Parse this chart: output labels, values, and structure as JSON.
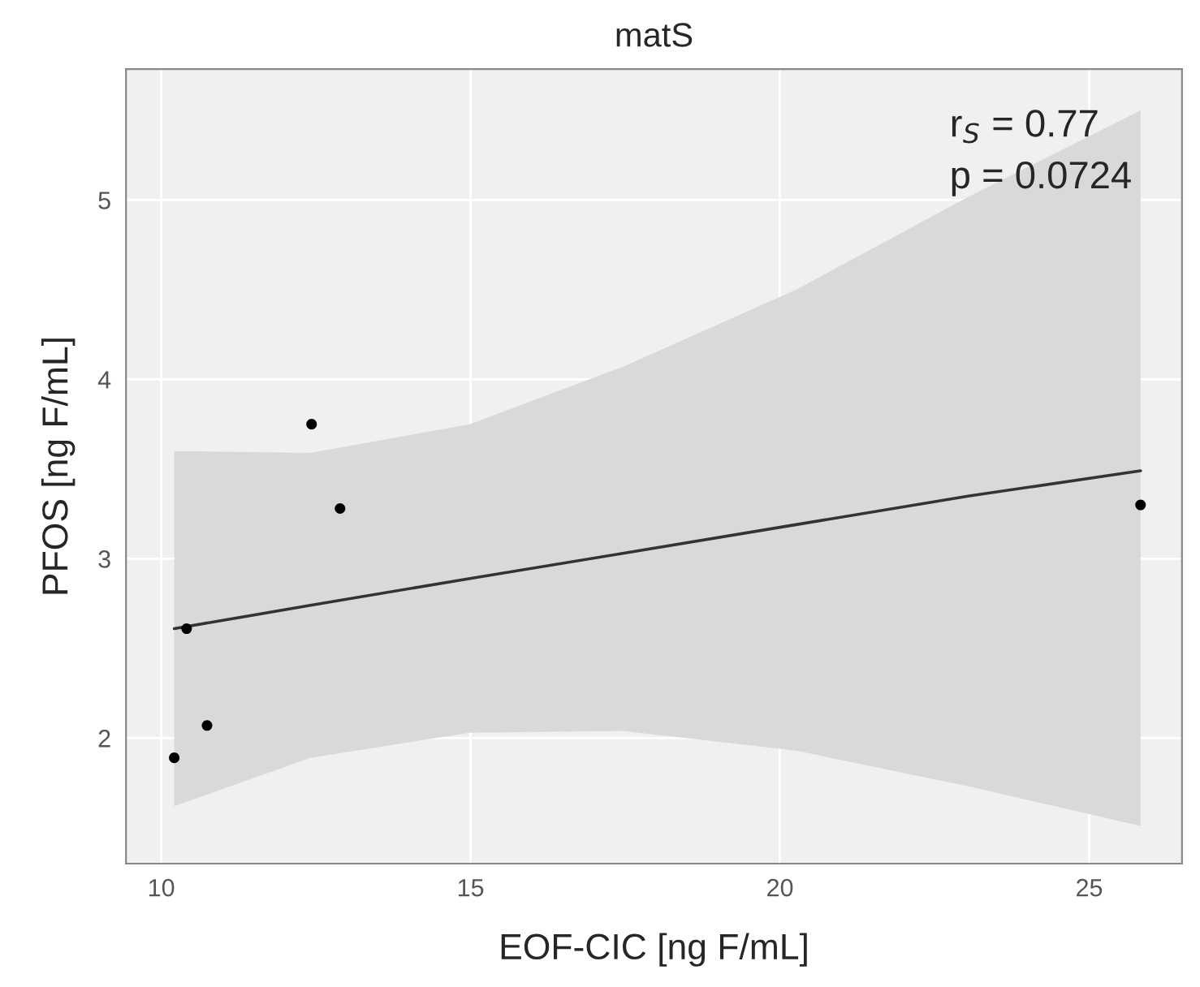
{
  "chart_data": {
    "type": "scatter",
    "title": "matS",
    "xlabel": "EOF-CIC [ng F/mL]",
    "ylabel": "PFOS [ng F/mL]",
    "xlim": [
      9.43,
      26.5
    ],
    "ylim": [
      1.3,
      5.73
    ],
    "xticks": [
      10,
      15,
      20,
      25
    ],
    "yticks": [
      2,
      3,
      4,
      5
    ],
    "grid": true,
    "series": [
      {
        "color": "#000000",
        "marker": "circle",
        "x": [
          10.21,
          10.41,
          10.74,
          12.43,
          12.89,
          25.83
        ],
        "values": [
          1.89,
          2.61,
          2.07,
          3.75,
          3.28,
          3.3
        ]
      },
      {
        "type": "line",
        "color": "#333333",
        "x": [
          10.21,
          12.41,
          14.99,
          17.46,
          20.26,
          23.06,
          25.83
        ],
        "values": [
          2.61,
          2.74,
          2.89,
          3.03,
          3.19,
          3.35,
          3.49
        ],
        "lower": [
          1.62,
          1.89,
          2.03,
          2.04,
          1.93,
          1.73,
          1.51
        ],
        "upper": [
          3.6,
          3.59,
          3.75,
          4.07,
          4.5,
          5.02,
          5.5
        ]
      }
    ],
    "annotations": [
      "r$_{S}$ = 0.77",
      "p = 0.0724"
    ]
  }
}
